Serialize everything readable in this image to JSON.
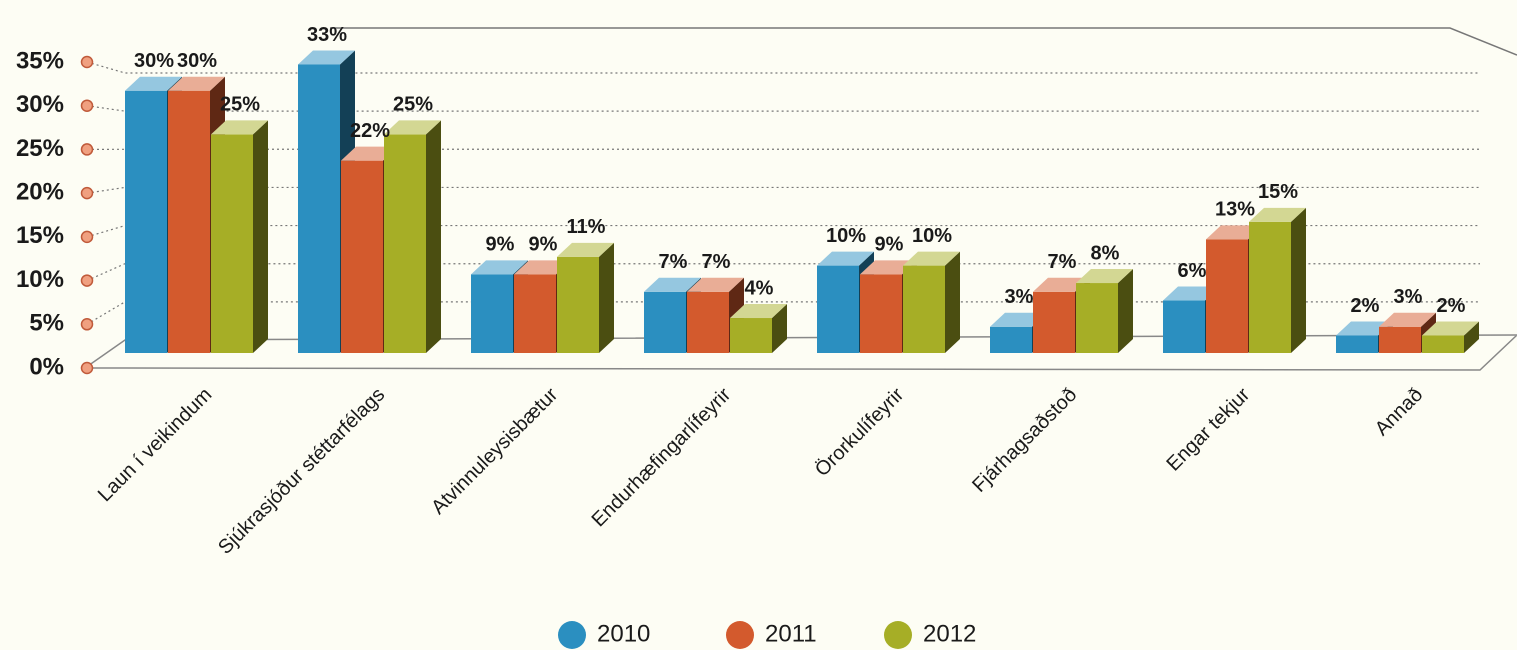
{
  "chart_data": {
    "type": "bar3d",
    "categories": [
      "Laun í veikindum",
      "Sjúkrasjóður stéttarfélags",
      "Atvinnuleysisbætur",
      "Endurhæfingarlífeyrir",
      "Örorkulífeyrir",
      "Fjárhagsaðstoð",
      "Engar tekjur",
      "Annað"
    ],
    "series": [
      {
        "name": "2010",
        "color": "#2b8fc0",
        "values": [
          30,
          33,
          9,
          7,
          10,
          3,
          6,
          2
        ],
        "value_labels": [
          "30%",
          "33%",
          "9%",
          "7%",
          "10%",
          "3%",
          "6%",
          "2%"
        ]
      },
      {
        "name": "2011",
        "color": "#d35a2d",
        "values": [
          30,
          22,
          9,
          7,
          9,
          7,
          13,
          3
        ],
        "value_labels": [
          "30%",
          "22%",
          "9%",
          "7%",
          "9%",
          "7%",
          "13%",
          "3%"
        ]
      },
      {
        "name": "2012",
        "color": "#a6ae26",
        "values": [
          25,
          25,
          11,
          4,
          10,
          8,
          15,
          2
        ],
        "value_labels": [
          "25%",
          "25%",
          "11%",
          "4%",
          "10%",
          "8%",
          "15%",
          "2%"
        ]
      }
    ],
    "ylim": [
      0,
      35
    ],
    "yticks": [
      {
        "value": 0,
        "label": "0%"
      },
      {
        "value": 5,
        "label": "5%"
      },
      {
        "value": 10,
        "label": "10%"
      },
      {
        "value": 15,
        "label": "15%"
      },
      {
        "value": 20,
        "label": "20%"
      },
      {
        "value": 25,
        "label": "25%"
      },
      {
        "value": 30,
        "label": "30%"
      },
      {
        "value": 35,
        "label": "35%"
      }
    ],
    "grid": true
  }
}
